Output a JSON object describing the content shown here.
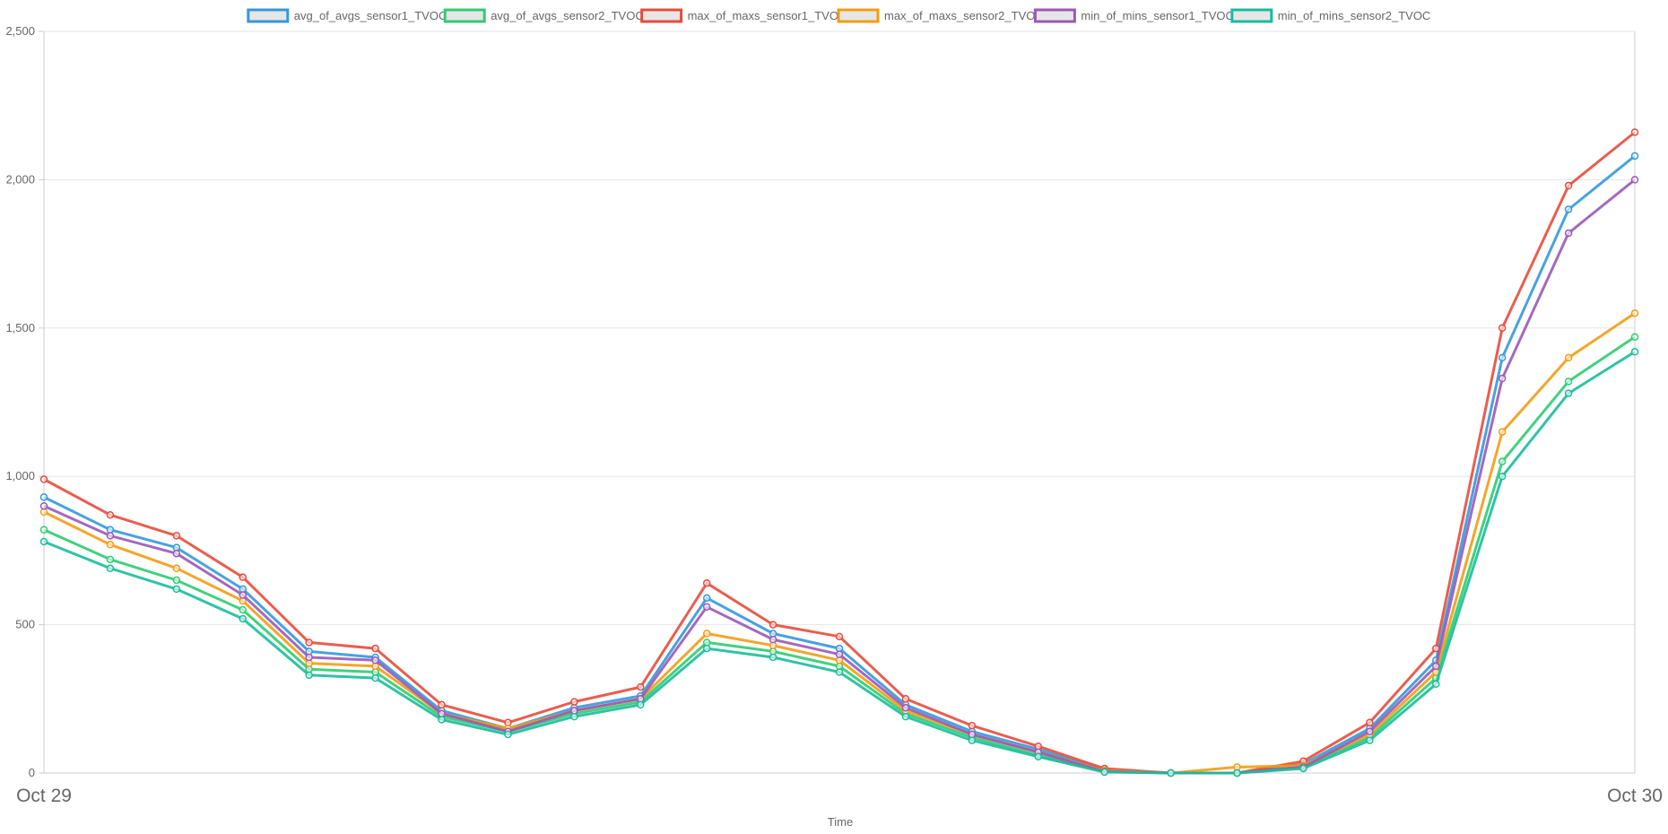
{
  "chart_data": {
    "type": "line",
    "title": "",
    "xlabel": "Time",
    "ylabel": "",
    "ylim": [
      0,
      2500
    ],
    "yticks": [
      0,
      500,
      1000,
      1500,
      2000,
      2500
    ],
    "ytick_labels": [
      "0",
      "500",
      "1,000",
      "1,500",
      "2,000",
      "2,500"
    ],
    "xlim": [
      "Oct 29",
      "Oct 30"
    ],
    "xtick_labels": [
      "Oct 29",
      "Oct 30"
    ],
    "grid": true,
    "legend_position": "top",
    "x": [
      "00:00",
      "01:00",
      "02:00",
      "03:00",
      "04:00",
      "05:00",
      "06:00",
      "07:00",
      "08:00",
      "09:00",
      "10:00",
      "11:00",
      "12:00",
      "13:00",
      "14:00",
      "15:00",
      "16:00",
      "17:00",
      "18:00",
      "19:00",
      "20:00",
      "21:00",
      "22:00",
      "23:00",
      "24:00"
    ],
    "series": [
      {
        "name": "avg_of_avgs_sensor1_TVOC",
        "color": "#3498db",
        "values": [
          930,
          820,
          760,
          620,
          410,
          390,
          210,
          150,
          220,
          260,
          590,
          470,
          420,
          230,
          140,
          80,
          10,
          0,
          0,
          30,
          150,
          380,
          1400,
          1900,
          2080
        ]
      },
      {
        "name": "avg_of_avgs_sensor2_TVOC",
        "color": "#2ecc71",
        "values": [
          820,
          720,
          650,
          550,
          350,
          340,
          190,
          140,
          200,
          240,
          440,
          410,
          360,
          200,
          120,
          60,
          5,
          0,
          0,
          20,
          120,
          320,
          1050,
          1320,
          1470
        ]
      },
      {
        "name": "max_of_maxs_sensor1_TVOC",
        "color": "#e74c3c",
        "values": [
          990,
          870,
          800,
          660,
          440,
          420,
          230,
          170,
          240,
          290,
          640,
          500,
          460,
          250,
          160,
          90,
          15,
          0,
          0,
          40,
          170,
          420,
          1500,
          1980,
          2160
        ]
      },
      {
        "name": "max_of_maxs_sensor2_TVOC",
        "color": "#f39c12",
        "values": [
          880,
          770,
          690,
          580,
          370,
          360,
          200,
          150,
          210,
          250,
          470,
          430,
          380,
          210,
          130,
          70,
          8,
          0,
          20,
          25,
          130,
          340,
          1150,
          1400,
          1550
        ]
      },
      {
        "name": "min_of_mins_sensor1_TVOC",
        "color": "#9b59b6",
        "values": [
          900,
          800,
          740,
          600,
          390,
          380,
          200,
          140,
          210,
          250,
          560,
          450,
          400,
          220,
          130,
          70,
          5,
          0,
          0,
          20,
          140,
          360,
          1330,
          1820,
          2000
        ]
      },
      {
        "name": "min_of_mins_sensor2_TVOC",
        "color": "#1abc9c",
        "values": [
          780,
          690,
          620,
          520,
          330,
          320,
          180,
          130,
          190,
          230,
          420,
          390,
          340,
          190,
          110,
          55,
          3,
          0,
          0,
          15,
          110,
          300,
          1000,
          1280,
          1420
        ]
      }
    ]
  }
}
